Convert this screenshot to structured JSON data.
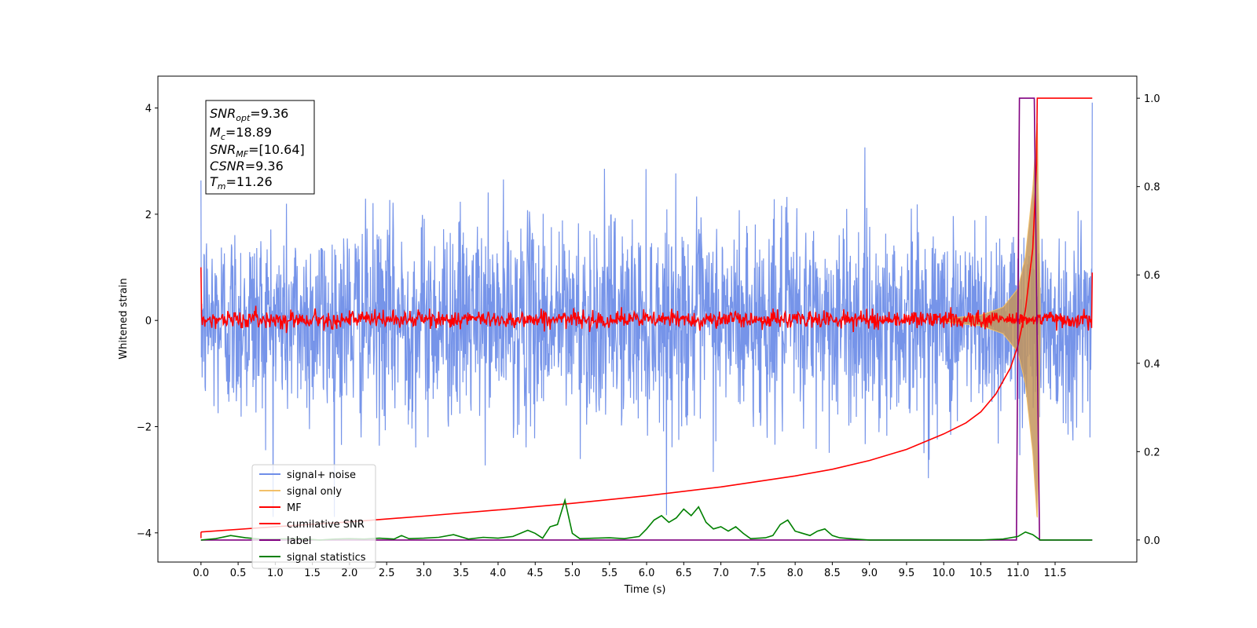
{
  "chart_data": {
    "type": "line",
    "xlabel": "Time (s)",
    "ylabel": "Whitened strain",
    "ylabel_right": "",
    "xlim": [
      -0.58,
      12.6
    ],
    "ylim_left": [
      -4.55,
      4.6
    ],
    "ylim_right": [
      -0.05,
      1.05
    ],
    "x_ticks": [
      "0.0",
      "0.5",
      "1.0",
      "1.5",
      "2.0",
      "2.5",
      "3.0",
      "3.5",
      "4.0",
      "4.5",
      "5.0",
      "5.5",
      "6.0",
      "6.5",
      "7.0",
      "7.5",
      "8.0",
      "8.5",
      "9.0",
      "9.5",
      "10.0",
      "10.5",
      "11.0",
      "11.5"
    ],
    "y_ticks_left": [
      "-4",
      "-2",
      "0",
      "2",
      "4"
    ],
    "y_ticks_right": [
      "0.0",
      "0.2",
      "0.4",
      "0.6",
      "0.8",
      "1.0"
    ],
    "annotation": {
      "snr_opt": {
        "base": "SNR",
        "sub": "opt",
        "value": "=9.36"
      },
      "mc": {
        "base": "M",
        "sub": "c",
        "value": "=18.89"
      },
      "snr_mf": {
        "base": "SNR",
        "sub": "MF",
        "value": "=[10.64]"
      },
      "csnr": {
        "base": "CSNR",
        "value": "=9.36"
      },
      "tm": {
        "base": "T",
        "sub": "m",
        "value": "=11.26"
      }
    },
    "legend_position": "lower-left",
    "colors": {
      "signal_noise": "#6f8ee8",
      "signal_only": "#f2c06a",
      "signal_envelope": "#c4955c",
      "mf": "#ff0000",
      "cumulative_snr": "#ff0000",
      "label": "#800080",
      "signal_statistics": "#008000"
    },
    "series": [
      {
        "name": "signal+ noise",
        "axis": "left",
        "duration": 12.0,
        "noise_std": 0.95,
        "peak": 4.1
      },
      {
        "name": "signal only",
        "axis": "left",
        "envelope": [
          [
            10.0,
            0.03
          ],
          [
            10.5,
            0.1
          ],
          [
            10.8,
            0.25
          ],
          [
            11.0,
            0.6
          ],
          [
            11.1,
            1.2
          ],
          [
            11.2,
            2.5
          ],
          [
            11.26,
            3.8
          ],
          [
            11.3,
            0.3
          ]
        ]
      },
      {
        "name": "MF",
        "axis": "left",
        "baseline_std": 0.08,
        "start_value": 1.0,
        "end_value": 0.9
      },
      {
        "name": "cumilative SNR",
        "axis": "right",
        "x": [
          0.0,
          1.0,
          2.0,
          3.0,
          4.0,
          5.0,
          6.0,
          7.0,
          8.0,
          8.5,
          9.0,
          9.5,
          10.0,
          10.3,
          10.5,
          10.7,
          10.9,
          11.0,
          11.1,
          11.2,
          11.25,
          11.26,
          11.3,
          12.0
        ],
        "y": [
          0.018,
          0.03,
          0.041,
          0.054,
          0.068,
          0.083,
          0.1,
          0.12,
          0.145,
          0.16,
          0.18,
          0.205,
          0.24,
          0.265,
          0.29,
          0.33,
          0.39,
          0.44,
          0.52,
          0.66,
          0.85,
          1.0,
          1.0,
          1.0
        ]
      },
      {
        "name": "label",
        "axis": "right",
        "x": [
          0.0,
          10.98,
          11.02,
          11.22,
          11.29,
          11.33,
          12.0
        ],
        "y": [
          0,
          0,
          1,
          1,
          0,
          0,
          0
        ]
      },
      {
        "name": "signal statistics",
        "axis": "right",
        "x": [
          0.0,
          0.2,
          0.4,
          0.6,
          0.8,
          1.0,
          1.2,
          1.4,
          1.6,
          1.8,
          2.0,
          2.2,
          2.4,
          2.6,
          2.7,
          2.8,
          3.0,
          3.2,
          3.4,
          3.6,
          3.8,
          4.0,
          4.2,
          4.4,
          4.5,
          4.6,
          4.7,
          4.8,
          4.9,
          5.0,
          5.1,
          5.3,
          5.5,
          5.7,
          5.9,
          6.0,
          6.1,
          6.2,
          6.3,
          6.4,
          6.5,
          6.6,
          6.7,
          6.8,
          6.9,
          7.0,
          7.1,
          7.2,
          7.3,
          7.4,
          7.6,
          7.7,
          7.8,
          7.9,
          8.0,
          8.2,
          8.3,
          8.4,
          8.5,
          8.6,
          8.8,
          9.0,
          9.2,
          9.5,
          10.0,
          10.5,
          10.8,
          11.0,
          11.1,
          11.2,
          11.3,
          11.5,
          12.0
        ],
        "y": [
          0.0,
          0.003,
          0.01,
          0.005,
          0.002,
          0.002,
          0.003,
          0.002,
          0.0,
          0.002,
          0.003,
          0.002,
          0.004,
          0.002,
          0.01,
          0.003,
          0.004,
          0.006,
          0.012,
          0.002,
          0.006,
          0.004,
          0.008,
          0.022,
          0.015,
          0.004,
          0.03,
          0.035,
          0.09,
          0.015,
          0.003,
          0.004,
          0.005,
          0.003,
          0.008,
          0.025,
          0.045,
          0.055,
          0.04,
          0.05,
          0.07,
          0.055,
          0.075,
          0.04,
          0.025,
          0.03,
          0.02,
          0.03,
          0.015,
          0.003,
          0.005,
          0.01,
          0.035,
          0.045,
          0.02,
          0.01,
          0.02,
          0.025,
          0.01,
          0.005,
          0.002,
          0.0,
          0.0,
          0.0,
          0.0,
          0.0,
          0.002,
          0.008,
          0.018,
          0.012,
          0.0,
          0.0,
          0.0
        ]
      }
    ]
  }
}
